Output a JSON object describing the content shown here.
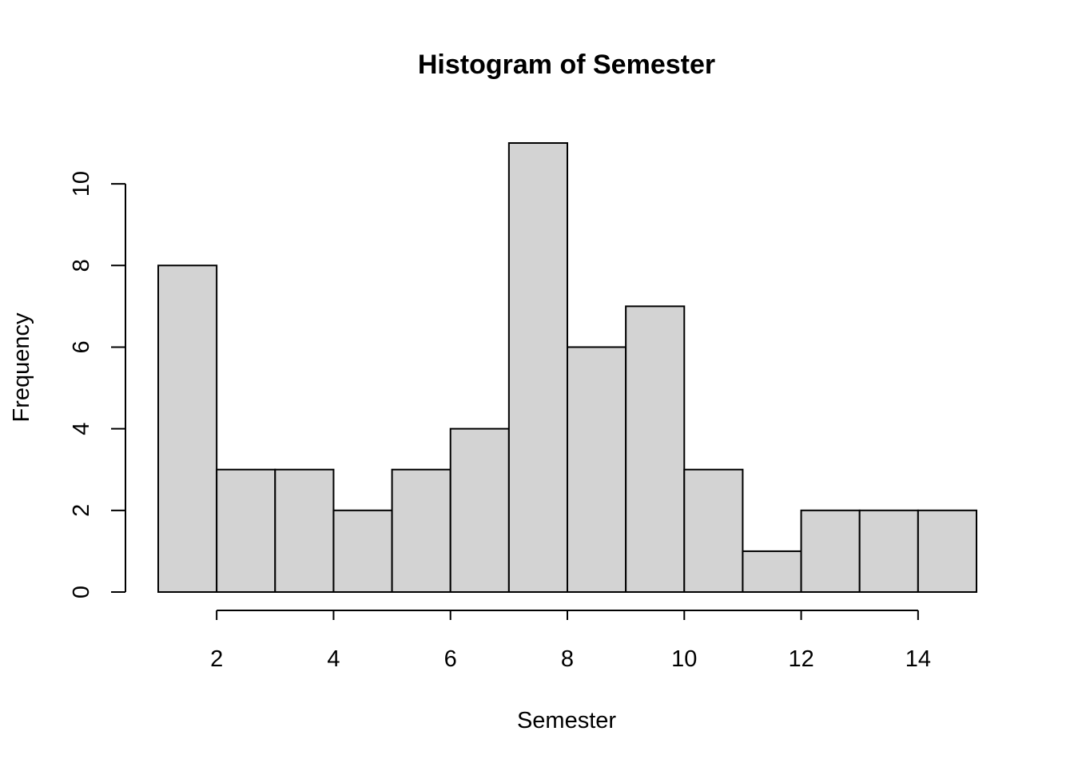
{
  "chart_data": {
    "type": "bar",
    "title": "Histogram of Semester",
    "xlabel": "Semester",
    "ylabel": "Frequency",
    "bins": [
      {
        "start": 1,
        "end": 2,
        "count": 8
      },
      {
        "start": 2,
        "end": 3,
        "count": 3
      },
      {
        "start": 3,
        "end": 4,
        "count": 3
      },
      {
        "start": 4,
        "end": 5,
        "count": 2
      },
      {
        "start": 5,
        "end": 6,
        "count": 3
      },
      {
        "start": 6,
        "end": 7,
        "count": 4
      },
      {
        "start": 7,
        "end": 8,
        "count": 11
      },
      {
        "start": 8,
        "end": 9,
        "count": 6
      },
      {
        "start": 9,
        "end": 10,
        "count": 7
      },
      {
        "start": 10,
        "end": 11,
        "count": 3
      },
      {
        "start": 11,
        "end": 12,
        "count": 1
      },
      {
        "start": 12,
        "end": 13,
        "count": 2
      },
      {
        "start": 13,
        "end": 14,
        "count": 2
      },
      {
        "start": 14,
        "end": 15,
        "count": 2
      }
    ],
    "xlim": [
      1,
      15
    ],
    "ylim": [
      0,
      11
    ],
    "x_ticks": [
      2,
      4,
      6,
      8,
      10,
      12,
      14
    ],
    "y_ticks": [
      0,
      2,
      4,
      6,
      8,
      10
    ],
    "colors": {
      "bar_fill": "#d3d3d3",
      "bar_stroke": "#000000"
    },
    "grid": false
  }
}
